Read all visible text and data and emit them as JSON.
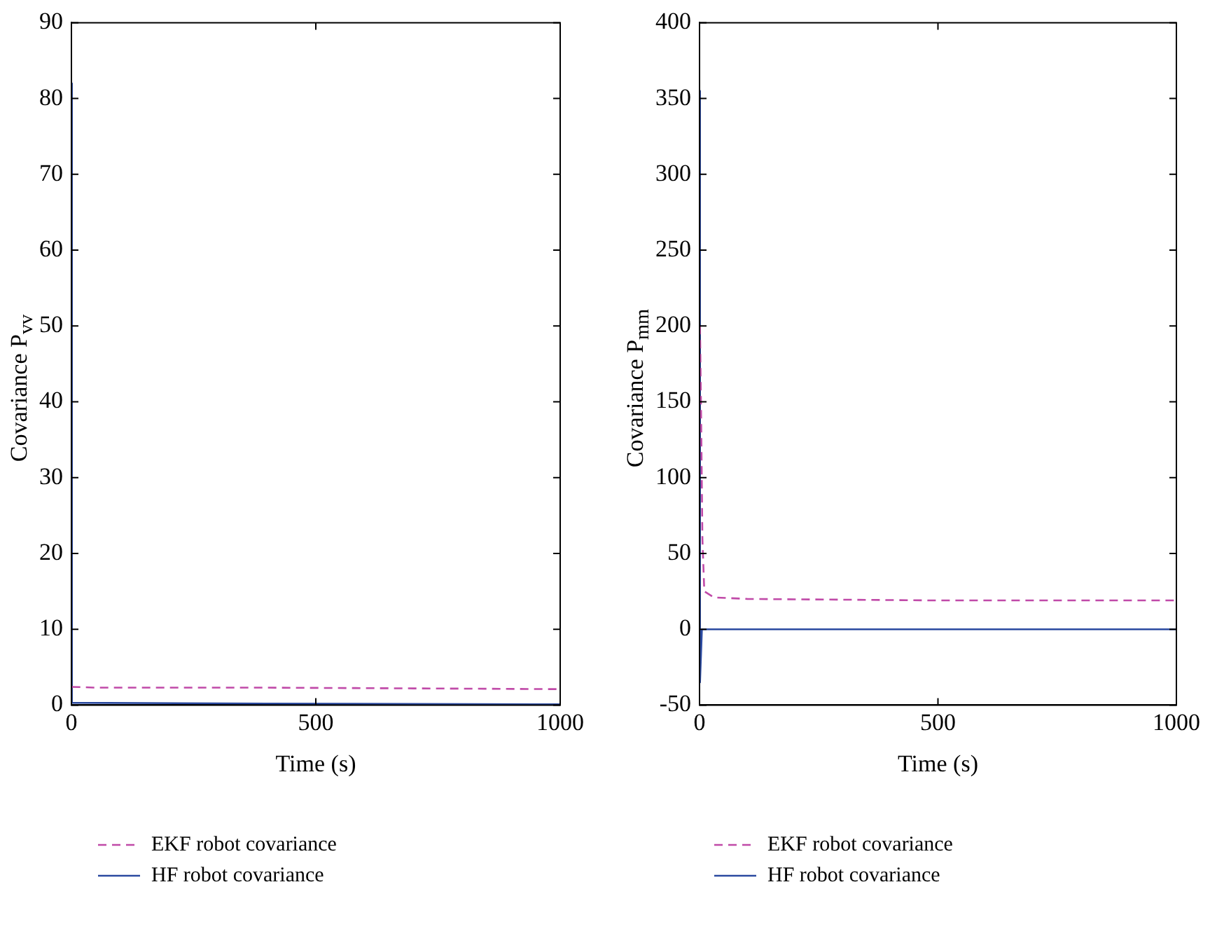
{
  "chart_data": [
    {
      "type": "line",
      "xlabel": "Time (s)",
      "ylabel": "Covariance P$_{vv}$",
      "xlim": [
        0,
        1000
      ],
      "xticks": [
        0,
        500,
        1000
      ],
      "ylim": [
        0,
        90
      ],
      "yticks": [
        0,
        10,
        20,
        30,
        40,
        50,
        60,
        70,
        80,
        90
      ],
      "grid": false,
      "legend": "bottom",
      "series": [
        {
          "name": "EKF robot covariance",
          "color": "#c04aa8",
          "line_style": "dashed",
          "x": [
            1,
            50,
            400,
            700,
            1000
          ],
          "values": [
            2.4,
            2.3,
            2.3,
            2.2,
            2.1
          ]
        },
        {
          "name": "HF robot covariance",
          "color": "#2b4aa0",
          "line_style": "solid",
          "x": [
            0,
            1,
            400,
            1000
          ],
          "values": [
            82,
            0.3,
            0.2,
            0.1
          ]
        }
      ]
    },
    {
      "type": "line",
      "xlabel": "Time (s)",
      "ylabel": "Covariance P$_{mm}$",
      "xlim": [
        0,
        1000
      ],
      "xticks": [
        0,
        500,
        1000
      ],
      "ylim": [
        -50,
        400
      ],
      "yticks": [
        -50,
        0,
        50,
        100,
        150,
        200,
        250,
        300,
        350,
        400
      ],
      "grid": false,
      "legend": "bottom",
      "series": [
        {
          "name": "EKF robot covariance",
          "color": "#c04aa8",
          "line_style": "dashed",
          "x": [
            1,
            3,
            6,
            10,
            30,
            100,
            500,
            1000
          ],
          "values": [
            200,
            150,
            60,
            25,
            21,
            20,
            19,
            19
          ]
        },
        {
          "name": "HF robot covariance",
          "color": "#2b4aa0",
          "line_style": "solid",
          "x": [
            0,
            1,
            5,
            1000
          ],
          "values": [
            355,
            -35,
            0,
            0
          ]
        }
      ]
    }
  ]
}
